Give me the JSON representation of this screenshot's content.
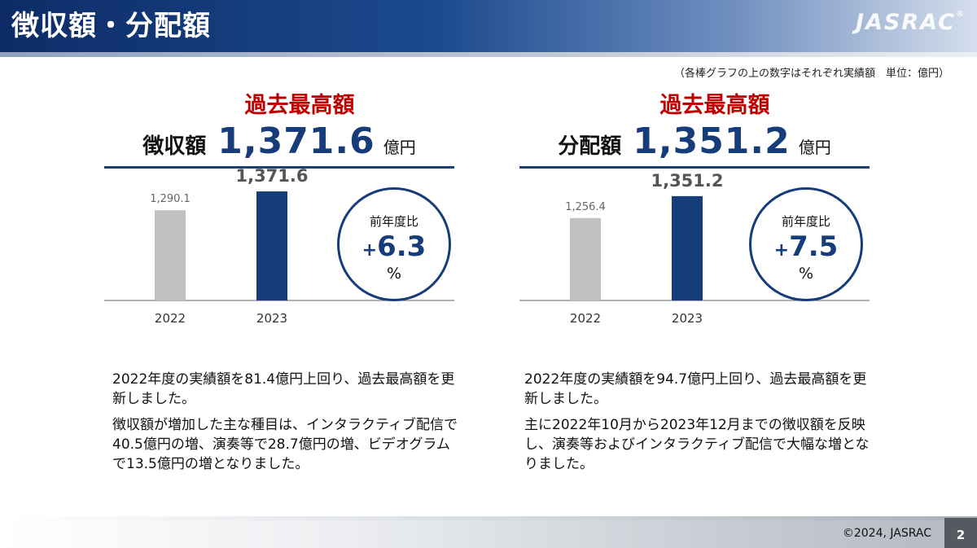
{
  "header": {
    "title": "徴収額・分配額",
    "logo": "JASRAC",
    "logo_mark": "®"
  },
  "note": "（各棒グラフの上の数字はそれぞれ実績額　単位：億円）",
  "panels": [
    {
      "record_label": "過去最高額",
      "metric_label": "徴収額",
      "metric_value": "1,371.6",
      "metric_unit": "億円",
      "yoy_label": "前年度比",
      "yoy_sign": "+",
      "yoy_value": "6.3",
      "yoy_unit": "%",
      "desc1": "2022年度の実績額を81.4億円上回り、過去最高額を更新しました。",
      "desc2": "徴収額が増加した主な種目は、インタラクティブ配信で40.5億円の増、演奏等で28.7億円の増、ビデオグラムで13.5億円の増となりました。"
    },
    {
      "record_label": "過去最高額",
      "metric_label": "分配額",
      "metric_value": "1,351.2",
      "metric_unit": "億円",
      "yoy_label": "前年度比",
      "yoy_sign": "+",
      "yoy_value": "7.5",
      "yoy_unit": "%",
      "desc1": "2022年度の実績額を94.7億円上回り、過去最高額を更新しました。",
      "desc2": "主に2022年10月から2023年12月までの徴収額を反映し、演奏等およびインタラクティブ配信で大幅な増となりました。"
    }
  ],
  "chart_data": [
    {
      "type": "bar",
      "categories": [
        "2022",
        "2023"
      ],
      "values": [
        1290.1,
        1371.6
      ],
      "value_labels": [
        "1,290.1",
        "1,371.6"
      ],
      "colors": [
        "#c0c0c0",
        "#163d7a"
      ],
      "title": "",
      "xlabel": "",
      "ylabel": ""
    },
    {
      "type": "bar",
      "categories": [
        "2022",
        "2023"
      ],
      "values": [
        1256.4,
        1351.2
      ],
      "value_labels": [
        "1,256.4",
        "1,351.2"
      ],
      "colors": [
        "#c0c0c0",
        "#163d7a"
      ],
      "title": "",
      "xlabel": "",
      "ylabel": ""
    }
  ],
  "footer": {
    "copyright": "©2024, JASRAC",
    "page": "2"
  }
}
